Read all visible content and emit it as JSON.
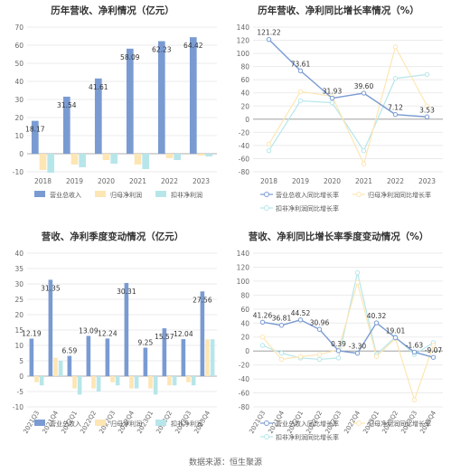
{
  "source": "数据来源：恒生聚源",
  "colors": {
    "s1": "#7a9bd2",
    "s2": "#fde6b4",
    "s3": "#b7e6ea"
  },
  "chart_data": [
    {
      "type": "bar",
      "title": "历年营收、净利情况（亿元）",
      "categories": [
        "2018",
        "2019",
        "2020",
        "2021",
        "2022",
        "2023"
      ],
      "ylim": [
        -10,
        70
      ],
      "yticks": [
        -10,
        0,
        10,
        20,
        30,
        40,
        50,
        60,
        70
      ],
      "series": [
        {
          "name": "营业总收入",
          "values": [
            18.17,
            31.54,
            41.61,
            58.09,
            62.23,
            64.42
          ],
          "labels": [
            "18.17",
            "31.54",
            "41.61",
            "58.09",
            "62.23",
            "64.42"
          ]
        },
        {
          "name": "归母净利润",
          "values": [
            -9.0,
            -6.0,
            -3.5,
            -6.0,
            -2.5,
            -1.0
          ]
        },
        {
          "name": "扣非净利润",
          "values": [
            -10.5,
            -7.5,
            -5.5,
            -8.5,
            -3.5,
            -1.5
          ]
        }
      ]
    },
    {
      "type": "line",
      "title": "历年营收、净利同比增长率情况（%）",
      "categories": [
        "2018",
        "2019",
        "2020",
        "2021",
        "2022",
        "2023"
      ],
      "ylim": [
        -80,
        140
      ],
      "yticks": [
        -80,
        -60,
        -40,
        -20,
        0,
        20,
        40,
        60,
        80,
        100,
        120,
        140
      ],
      "series": [
        {
          "name": "营业总收入同比增长率",
          "values": [
            121.22,
            73.61,
            31.93,
            39.6,
            7.12,
            3.53
          ],
          "labels": [
            "121.22",
            "73.61",
            "31.93",
            "39.60",
            "7.12",
            "3.53"
          ]
        },
        {
          "name": "归母净利润同比增长率",
          "values": [
            -38,
            42,
            35,
            -68,
            110,
            20
          ]
        },
        {
          "name": "扣非净利润同比增长率",
          "values": [
            -48,
            28,
            25,
            -48,
            62,
            68
          ]
        }
      ]
    },
    {
      "type": "bar",
      "title": "营收、净利季度变动情况（亿元）",
      "categories": [
        "2021Q3",
        "2021Q4",
        "2022Q1",
        "2022Q2",
        "2022Q3",
        "2022Q4",
        "2023Q1",
        "2023Q2",
        "2023Q3",
        "2023Q4"
      ],
      "ylim": [
        -10,
        40
      ],
      "yticks": [
        -10,
        -5,
        0,
        5,
        10,
        15,
        20,
        25,
        30,
        35,
        40
      ],
      "series": [
        {
          "name": "营业总收入",
          "values": [
            12.19,
            31.35,
            6.59,
            13.09,
            12.24,
            30.31,
            9.25,
            15.57,
            12.04,
            27.56
          ],
          "labels": [
            "12.19",
            "31.35",
            "6.59",
            "13.09",
            "12.24",
            "30.31",
            "9.25",
            "15.57",
            "12.04",
            "27.56"
          ]
        },
        {
          "name": "归母净利润",
          "values": [
            -2,
            6,
            -4,
            -4,
            -2,
            -4,
            -4,
            -3,
            -2,
            12
          ]
        },
        {
          "name": "扣非净利润",
          "values": [
            -3,
            5,
            -6,
            -5,
            -3,
            -4,
            -6,
            -3,
            -3,
            12
          ]
        }
      ]
    },
    {
      "type": "line",
      "title": "营收、净利同比增长率季度变动情况（%）",
      "categories": [
        "2021Q3",
        "2021Q4",
        "2022Q1",
        "2022Q2",
        "2022Q3",
        "2022Q4",
        "2023Q1",
        "2023Q2",
        "2023Q3",
        "2023Q4"
      ],
      "ylim": [
        -80,
        140
      ],
      "yticks": [
        -80,
        -60,
        -40,
        -20,
        0,
        20,
        40,
        60,
        80,
        100,
        120,
        140
      ],
      "series": [
        {
          "name": "营业总收入同比增长率",
          "values": [
            41.26,
            36.81,
            44.52,
            30.96,
            0.39,
            -3.3,
            40.32,
            19.01,
            -1.63,
            -9.07
          ],
          "labels": [
            "41.26",
            "36.81",
            "44.52",
            "30.96",
            "0.39",
            "-3.30",
            "40.32",
            "19.01",
            "-1.63",
            "-9.07"
          ]
        },
        {
          "name": "归母净利润同比增长率",
          "values": [
            20,
            -12,
            -8,
            -5,
            2,
            98,
            -8,
            18,
            -70,
            8
          ]
        },
        {
          "name": "扣非净利润同比增长率",
          "values": [
            8,
            -3,
            -10,
            -12,
            -10,
            112,
            -5,
            20,
            -5,
            12
          ]
        }
      ]
    }
  ]
}
